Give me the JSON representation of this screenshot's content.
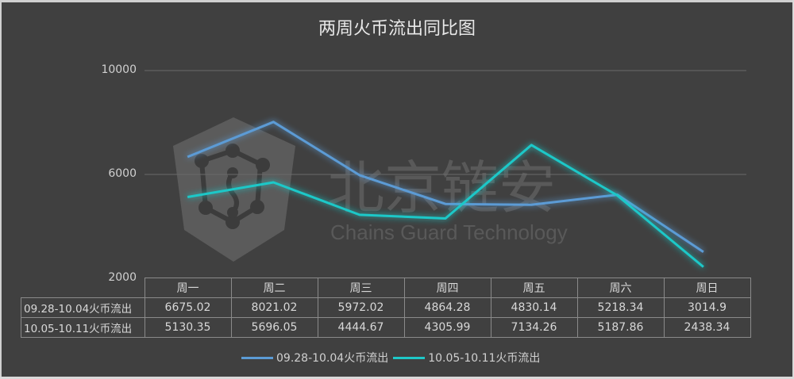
{
  "chart_data": {
    "type": "line",
    "title": "两周火币流出同比图",
    "categories": [
      "周一",
      "周二",
      "周三",
      "周四",
      "周五",
      "周六",
      "周日"
    ],
    "series": [
      {
        "name": "09.28-10.04火币流出",
        "color": "#5b9bd5",
        "values": [
          6675.02,
          8021.02,
          5972.02,
          4864.28,
          4830.14,
          5218.34,
          3014.9
        ]
      },
      {
        "name": "10.05-10.11火币流出",
        "color": "#1ec8c8",
        "values": [
          5130.35,
          5696.05,
          4444.67,
          4305.99,
          7134.26,
          5187.86,
          2438.34
        ]
      }
    ],
    "ylim": [
      2000,
      10000
    ],
    "yticks": [
      "10000",
      "6000",
      "2000"
    ],
    "xlabel": "",
    "ylabel": "",
    "grid": true,
    "legend_position": "bottom",
    "data_table": true
  },
  "watermark": {
    "cn": "北京链安",
    "en": "Chains Guard Technology"
  }
}
